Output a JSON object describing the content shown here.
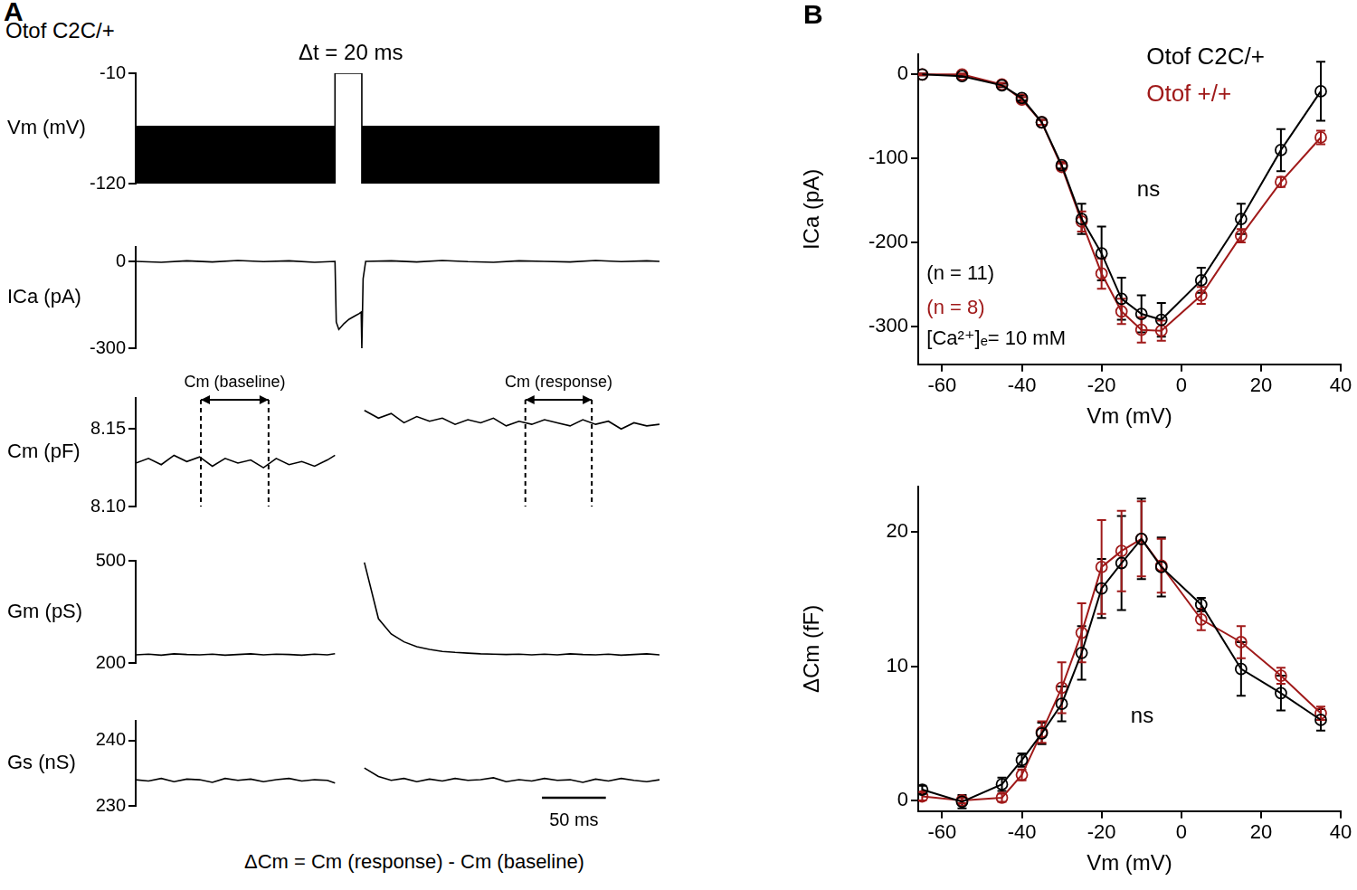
{
  "chart_data": [
    {
      "type": "line",
      "annotations": [
        {
          "text": "A"
        },
        {
          "text": "Otof C2C/+"
        },
        {
          "text": "Δt = 20 ms"
        }
      ],
      "y_label": "Vm (mV)",
      "x": [
        0,
        156,
        156,
        177,
        177,
        410
      ],
      "series": [
        {
          "type": "area",
          "color": "#000000",
          "values": [
            -63,
            -63,
            null,
            null,
            -63,
            -63
          ]
        },
        {
          "color": "#000000",
          "values": [
            -120,
            -120,
            null,
            null,
            -120,
            -120
          ]
        },
        {
          "color": "#000000",
          "values": [
            null,
            -120,
            -10,
            -10,
            -120,
            null
          ]
        }
      ],
      "xlim": [
        0,
        410
      ],
      "ylim": [
        -120,
        -10
      ],
      "yticks": [
        -120,
        -10
      ],
      "tick_labels": "y"
    },
    {
      "type": "line",
      "y_label": "ICa (pA)",
      "x": [
        0,
        20,
        40,
        60,
        80,
        100,
        120,
        140,
        156,
        157,
        159,
        163,
        167,
        171,
        175,
        176.5,
        177,
        178,
        180,
        200,
        220,
        240,
        260,
        280,
        300,
        320,
        340,
        360,
        380,
        400,
        410
      ],
      "series": [
        {
          "color": "#000000",
          "values": [
            0,
            -3,
            2,
            -2,
            3,
            -1,
            2,
            -3,
            0,
            -210,
            -235,
            -215,
            -200,
            -190,
            -180,
            -175,
            -300,
            -60,
            0,
            2,
            -2,
            3,
            -1,
            -3,
            2,
            0,
            -2,
            3,
            -1,
            2,
            0
          ]
        }
      ],
      "xlim": [
        0,
        410
      ],
      "ylim": [
        -300,
        50
      ],
      "yticks": [
        -300,
        0
      ],
      "tick_labels": "y"
    },
    {
      "type": "line",
      "y_label": "Cm (pF)",
      "windows": [
        {
          "label": "Cm (baseline)",
          "x": [
            51,
            104
          ]
        },
        {
          "label": "Cm (response)",
          "x": [
            305,
            357
          ]
        }
      ],
      "x": [
        0,
        10,
        20,
        30,
        40,
        50,
        60,
        70,
        80,
        90,
        100,
        110,
        120,
        130,
        140,
        150,
        156,
        168,
        179,
        190,
        200,
        210,
        220,
        230,
        240,
        250,
        260,
        270,
        280,
        290,
        300,
        310,
        320,
        330,
        340,
        350,
        360,
        370,
        380,
        390,
        400,
        410
      ],
      "series": [
        {
          "color": "#000000",
          "values": [
            8.128,
            8.131,
            8.127,
            8.133,
            8.129,
            8.132,
            8.126,
            8.131,
            8.128,
            8.13,
            8.125,
            8.131,
            8.127,
            8.129,
            8.126,
            8.13,
            8.133,
            null,
            8.162,
            8.157,
            8.16,
            8.154,
            8.158,
            8.155,
            8.157,
            8.153,
            8.156,
            8.154,
            8.157,
            8.152,
            8.155,
            8.153,
            8.156,
            8.154,
            8.152,
            8.156,
            8.153,
            8.155,
            8.15,
            8.154,
            8.152,
            8.153
          ]
        }
      ],
      "xlim": [
        0,
        410
      ],
      "ylim": [
        8.1,
        8.17
      ],
      "yticks": [
        {
          "value": 8.1,
          "label": "8.10"
        },
        8.15
      ],
      "tick_labels": "y"
    },
    {
      "type": "line",
      "y_label": "Gm (pS)",
      "x": [
        0,
        10,
        20,
        30,
        40,
        50,
        60,
        70,
        80,
        90,
        100,
        110,
        120,
        130,
        140,
        150,
        156,
        168,
        179,
        190,
        200,
        210,
        220,
        230,
        240,
        250,
        260,
        270,
        280,
        290,
        300,
        310,
        320,
        330,
        340,
        350,
        360,
        370,
        380,
        390,
        400,
        410
      ],
      "series": [
        {
          "color": "#000000",
          "values": [
            224,
            226,
            223,
            227,
            225,
            224,
            226,
            223,
            225,
            227,
            224,
            226,
            225,
            223,
            226,
            224,
            227,
            null,
            495,
            330,
            285,
            262,
            248,
            240,
            234,
            231,
            229,
            227,
            226,
            225,
            226,
            224,
            226,
            224,
            227,
            225,
            224,
            226,
            223,
            225,
            227,
            224
          ]
        }
      ],
      "xlim": [
        0,
        410
      ],
      "ylim": [
        200,
        500
      ],
      "yticks": [
        200,
        500
      ],
      "tick_labels": "y"
    },
    {
      "type": "line",
      "y_label": "Gs (nS)",
      "scale_bar": {
        "label": "50 ms",
        "x": [
          318,
          368
        ]
      },
      "annotations": [
        {
          "text": "ΔCm = Cm (response) - Cm (baseline)"
        }
      ],
      "x": [
        0,
        10,
        20,
        30,
        40,
        50,
        60,
        70,
        80,
        90,
        100,
        110,
        120,
        130,
        140,
        150,
        156,
        168,
        179,
        190,
        200,
        210,
        220,
        230,
        240,
        250,
        260,
        270,
        280,
        290,
        300,
        310,
        320,
        330,
        340,
        350,
        360,
        370,
        380,
        390,
        400,
        410
      ],
      "series": [
        {
          "color": "#000000",
          "values": [
            234,
            233.8,
            234.2,
            233.7,
            234.1,
            234,
            233.6,
            234.2,
            233.9,
            234.1,
            233.7,
            234,
            234.2,
            233.8,
            234,
            233.9,
            233.5,
            null,
            235.8,
            234.5,
            233.9,
            234.2,
            233.7,
            234.1,
            233.8,
            234.2,
            233.9,
            234,
            234.3,
            233.7,
            234,
            233.8,
            234.2,
            233.9,
            234,
            233.6,
            234.1,
            233.8,
            234.2,
            233.9,
            233.7,
            234
          ]
        }
      ],
      "xlim": [
        0,
        410
      ],
      "ylim": [
        230,
        243
      ],
      "yticks": [
        230,
        240
      ],
      "tick_labels": "y"
    },
    {
      "type": "line",
      "x_label": "Vm (mV)",
      "y_label": "ICa (pA)",
      "legend": "top right",
      "annotations": [
        {
          "text": "B"
        },
        {
          "text": "ns"
        },
        {
          "text": "(n = 11)",
          "color": "#000000"
        },
        {
          "text": "(n = 8)",
          "color": "#a01a1a"
        },
        {
          "text": "[Ca²⁺]ₑ= 10 mM",
          "color": "#000000"
        }
      ],
      "x": [
        -65,
        -55,
        -45,
        -40,
        -35,
        -30,
        -25,
        -20,
        -15,
        -10,
        -5,
        5,
        15,
        25,
        35
      ],
      "series": [
        {
          "name": "Otof C2C/+",
          "color": "#000000",
          "marker": "open_circle",
          "values": [
            0,
            -2,
            -13,
            -28,
            -57,
            -108,
            -172,
            -213,
            -267,
            -285,
            -292,
            -245,
            -172,
            -90,
            -20
          ],
          "errors": [
            1,
            1,
            2,
            3,
            3,
            4,
            18,
            32,
            25,
            22,
            20,
            15,
            18,
            25,
            35
          ]
        },
        {
          "name": "Otof +/+",
          "color": "#a01a1a",
          "marker": "open_circle",
          "values": [
            0,
            0,
            -12,
            -30,
            -57,
            -110,
            -175,
            -237,
            -282,
            -304,
            -305,
            -263,
            -192,
            -128,
            -75
          ],
          "errors": [
            1,
            1,
            2,
            3,
            3,
            4,
            12,
            18,
            15,
            15,
            12,
            10,
            8,
            6,
            8
          ]
        }
      ],
      "xlim": [
        -66,
        40
      ],
      "xticks": [
        -60,
        -40,
        -20,
        0,
        20,
        40
      ],
      "ylim": [
        -345,
        24
      ],
      "yticks": [
        -300,
        -200,
        -100,
        0
      ]
    },
    {
      "type": "line",
      "x_label": "Vm (mV)",
      "y_label": "ΔCm (fF)",
      "annotations": [
        {
          "text": "ns"
        }
      ],
      "x": [
        -65,
        -55,
        -45,
        -40,
        -35,
        -30,
        -25,
        -20,
        -15,
        -10,
        -5,
        5,
        15,
        25,
        35
      ],
      "series": [
        {
          "name": "Otof C2C/+",
          "color": "#000000",
          "marker": "open_circle",
          "values": [
            0.8,
            -0.1,
            1.2,
            3.0,
            5.0,
            7.2,
            11.0,
            15.8,
            17.7,
            19.5,
            17.4,
            14.6,
            9.8,
            8.0,
            6.0
          ],
          "errors": [
            0.3,
            0.5,
            0.5,
            0.5,
            0.8,
            1.3,
            2.0,
            2.2,
            3.5,
            3.0,
            2.2,
            0.5,
            2.0,
            1.3,
            0.8
          ]
        },
        {
          "name": "Otof +/+",
          "color": "#a01a1a",
          "marker": "open_circle",
          "values": [
            0.3,
            0,
            0.2,
            1.9,
            5.1,
            8.4,
            12.5,
            17.4,
            18.6,
            19.5,
            17.5,
            13.5,
            11.8,
            9.3,
            6.5
          ],
          "errors": [
            0.3,
            0.2,
            0.3,
            0.4,
            0.8,
            1.9,
            2.2,
            3.5,
            3.0,
            2.8,
            2.0,
            0.8,
            1.2,
            0.6,
            0.5
          ]
        }
      ],
      "xlim": [
        -66,
        40
      ],
      "xticks": [
        -60,
        -40,
        -20,
        0,
        20,
        40
      ],
      "ylim": [
        -0.8,
        23.4
      ],
      "yticks": [
        0,
        10,
        20
      ]
    }
  ]
}
